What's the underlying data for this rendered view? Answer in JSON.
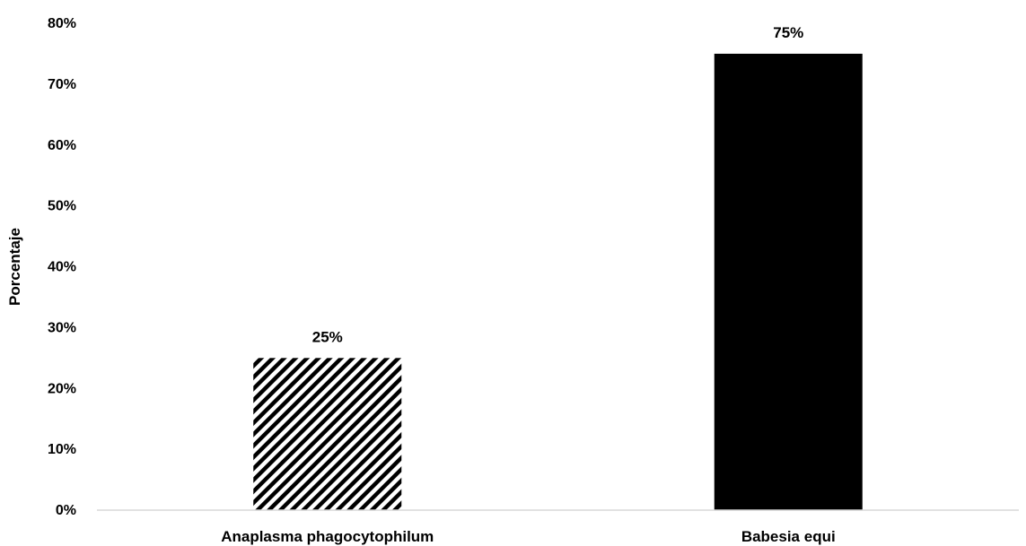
{
  "chart_data": {
    "type": "bar",
    "title": "",
    "xlabel": "",
    "ylabel": "Porcentaje",
    "categories": [
      "Anaplasma phagocytophilum",
      "Babesia equi"
    ],
    "values": [
      25,
      75
    ],
    "data_labels": [
      "25%",
      "75%"
    ],
    "ylim": [
      0,
      80
    ],
    "yticks": [
      0,
      10,
      20,
      30,
      40,
      50,
      60,
      70,
      80
    ],
    "ytick_labels": [
      "0%",
      "10%",
      "20%",
      "30%",
      "40%",
      "50%",
      "60%",
      "70%",
      "80%"
    ],
    "bar_styles": [
      "diagonal-hatch",
      "solid"
    ],
    "bar_color": "#000000",
    "grid": false,
    "legend": "none"
  }
}
